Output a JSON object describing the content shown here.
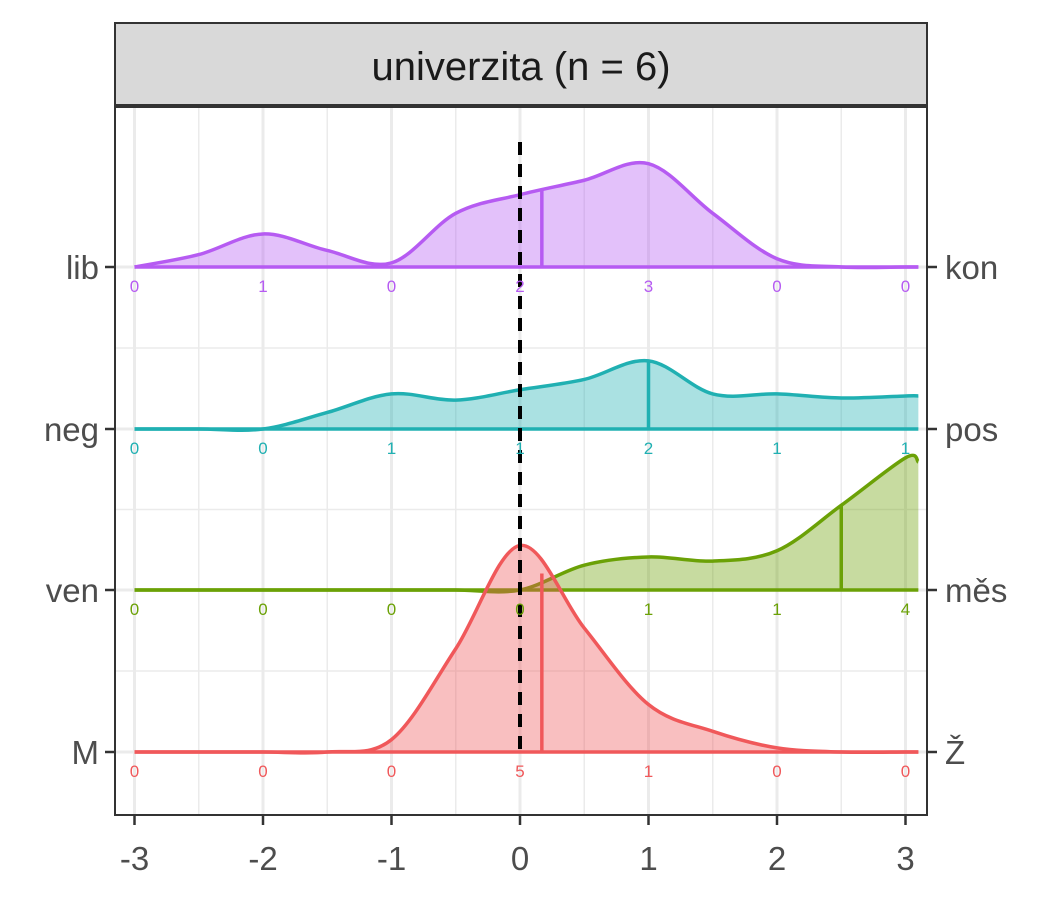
{
  "chart_data": {
    "type": "area",
    "title": "univerzita (n = 6)",
    "xlabel": "",
    "ylabel": "",
    "xlim": [
      -3.1,
      3.1
    ],
    "x_ticks": [
      "-3",
      "-2",
      "-1",
      "0",
      "1",
      "2",
      "3"
    ],
    "reference_line": 0,
    "grid": true,
    "x": [
      -3,
      -2.5,
      -2,
      -1.5,
      -1,
      -0.5,
      0,
      0.5,
      1,
      1.5,
      2,
      2.5,
      3,
      3.1
    ],
    "series": [
      {
        "left_label": "M",
        "right_label": "Ž",
        "color": "#F0585A",
        "density": [
          0,
          0,
          0,
          0,
          0.06,
          0.5,
          1.0,
          0.6,
          0.23,
          0.1,
          0.02,
          0,
          0,
          0
        ],
        "mean": 0.17,
        "counts": [
          "0",
          "0",
          "0",
          "5",
          "1",
          "0",
          "0"
        ]
      },
      {
        "left_label": "ven",
        "right_label": "měs",
        "color": "#6BA106",
        "density": [
          0,
          0,
          0,
          0,
          0,
          0,
          0,
          0.12,
          0.16,
          0.14,
          0.19,
          0.41,
          0.64,
          0.62
        ],
        "mean": 2.5,
        "counts": [
          "0",
          "0",
          "0",
          "0",
          "1",
          "1",
          "4"
        ]
      },
      {
        "left_label": "neg",
        "right_label": "pos",
        "color": "#20B0B2",
        "density": [
          0,
          0,
          0,
          0.08,
          0.17,
          0.14,
          0.19,
          0.24,
          0.33,
          0.17,
          0.17,
          0.15,
          0.16,
          0.16
        ],
        "mean": 1.0,
        "counts": [
          "0",
          "0",
          "1",
          "1",
          "2",
          "1",
          "1"
        ]
      },
      {
        "left_label": "lib",
        "right_label": "kon",
        "color": "#B65BF2",
        "density": [
          0,
          0.06,
          0.16,
          0.08,
          0.02,
          0.26,
          0.35,
          0.42,
          0.5,
          0.26,
          0.04,
          0,
          0,
          0
        ],
        "mean": 0.17,
        "counts": [
          "0",
          "1",
          "0",
          "2",
          "3",
          "0",
          "0"
        ]
      }
    ]
  }
}
